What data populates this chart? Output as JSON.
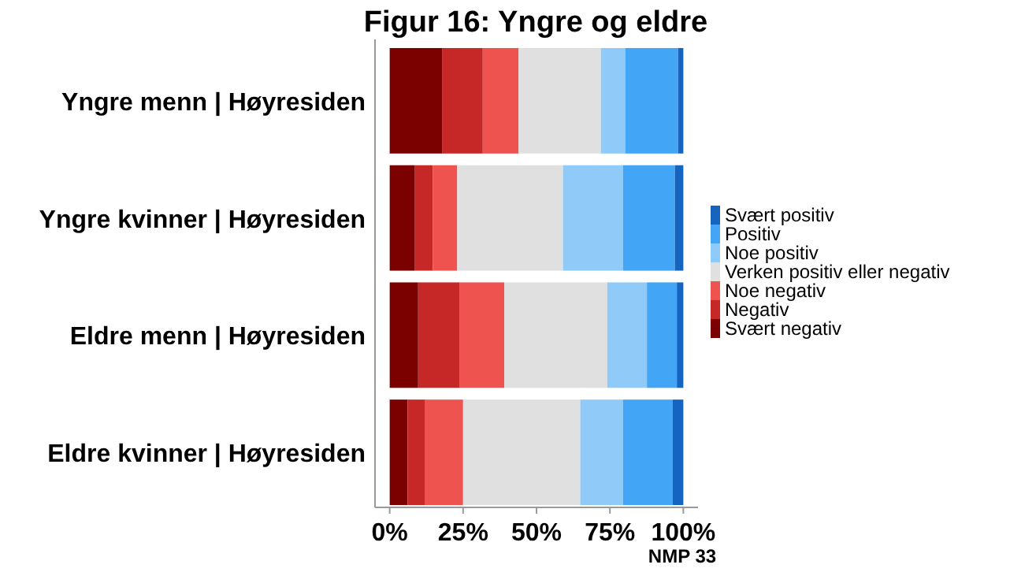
{
  "chart_data": {
    "type": "bar",
    "orientation": "horizontal",
    "stacked": true,
    "title": "Figur 16: Yngre og eldre",
    "categories": [
      "Yngre menn | Høyresiden",
      "Yngre kvinner | Høyresiden",
      "Eldre menn | Høyresiden",
      "Eldre kvinner | Høyresiden"
    ],
    "series": [
      {
        "name": "Svært negativ",
        "color": "#7b0000",
        "values": [
          18,
          8.6,
          9.7,
          6.1
        ]
      },
      {
        "name": "Negativ",
        "color": "#c62828",
        "values": [
          13.7,
          6.1,
          14.2,
          6
        ]
      },
      {
        "name": "Noe negativ",
        "color": "#ef5350",
        "values": [
          12.2,
          8.3,
          15.1,
          12.9
        ]
      },
      {
        "name": "Verken positiv eller negativ",
        "color": "#e0e0e0",
        "values": [
          28,
          36,
          35.1,
          39.9
        ]
      },
      {
        "name": "Noe positiv",
        "color": "#90caf9",
        "values": [
          8.3,
          20.5,
          13.5,
          14.6
        ]
      },
      {
        "name": "Positiv",
        "color": "#42a5f5",
        "values": [
          18,
          17.6,
          10.2,
          16.9
        ]
      },
      {
        "name": "Svært positiv",
        "color": "#1565c0",
        "values": [
          1.8,
          2.9,
          2.2,
          3.6
        ]
      }
    ],
    "xlim": [
      -5,
      105
    ],
    "xticks": [
      {
        "value": 0,
        "label": "0%"
      },
      {
        "value": 25,
        "label": "25%"
      },
      {
        "value": 50,
        "label": "50%"
      },
      {
        "value": 75,
        "label": "75%"
      },
      {
        "value": 100,
        "label": "100%"
      }
    ],
    "legend": "right",
    "grid": false,
    "annotations": [
      "NMP 33"
    ]
  }
}
